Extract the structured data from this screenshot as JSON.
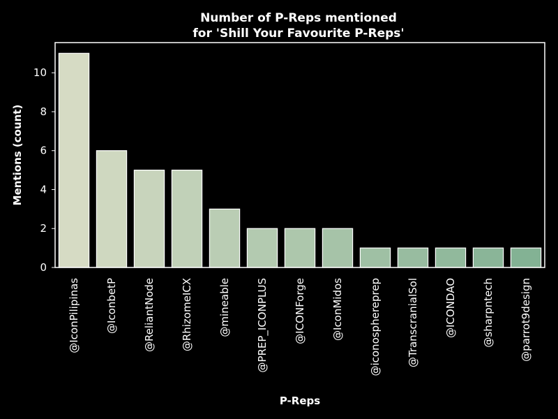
{
  "chart_data": {
    "type": "bar",
    "title_line1": "Number of P-Reps mentioned",
    "title_line2": "for 'Shill Your Favourite P-Reps'",
    "xlabel": "P-Reps",
    "ylabel": "Mentions (count)",
    "categories": [
      "@IconPilipinas",
      "@IconbetP",
      "@ReliantNode",
      "@RhizomeICX",
      "@mineable",
      "@PREP_ICONPLUS",
      "@ICONForge",
      "@IconMidos",
      "@iconosphereprep",
      "@TranscranialSol",
      "@ICONDAO",
      "@sharpntech",
      "@parrot9design"
    ],
    "values": [
      11,
      6,
      5,
      5,
      3,
      2,
      2,
      2,
      1,
      1,
      1,
      1,
      1
    ],
    "ylim": [
      0,
      11.55
    ],
    "yticks": [
      0,
      2,
      4,
      6,
      8,
      10
    ],
    "grid": false,
    "colors": {
      "background": "#000000",
      "axes": "#ffffff",
      "bar_start": "#d6dbc4",
      "bar_end": "#83b294",
      "bar_edge": "#ffffff"
    }
  }
}
